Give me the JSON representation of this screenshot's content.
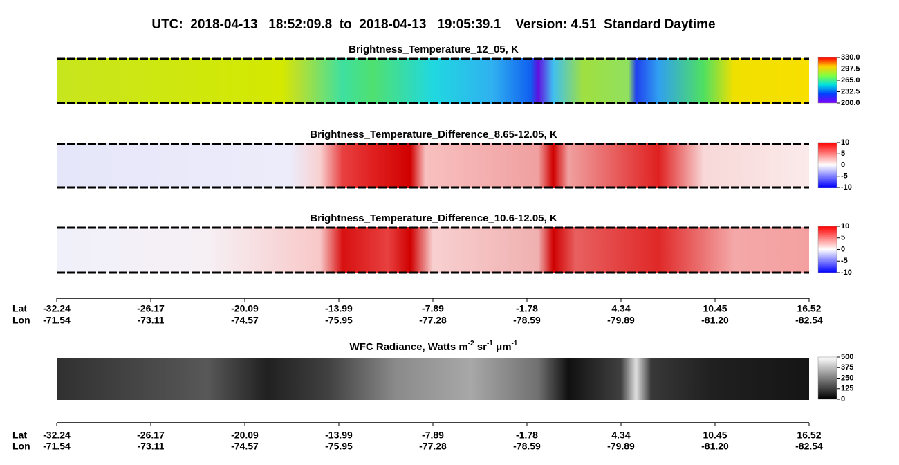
{
  "title": "UTC:  2018-04-13   18:52:09.8  to  2018-04-13   19:05:39.1    Version: 4.51  Standard Daytime",
  "panels": [
    {
      "title_segments": [
        {
          "text": "Brightness_Temperature_12_05, K"
        }
      ],
      "range": [
        200,
        330
      ],
      "colorbar_ticks": [
        {
          "value": 330,
          "label": "330.0"
        },
        {
          "value": 297.5,
          "label": "297.5"
        },
        {
          "value": 265,
          "label": "265.0"
        },
        {
          "value": 232.5,
          "label": "232.5"
        },
        {
          "value": 200,
          "label": "200.0"
        }
      ]
    },
    {
      "title_segments": [
        {
          "text": "Brightness_Temperature_Difference_8.65-12.05, K"
        }
      ],
      "range": [
        -10,
        10
      ],
      "colorbar_ticks": [
        10,
        5,
        0,
        -5,
        -10
      ]
    },
    {
      "title_segments": [
        {
          "text": "Brightness_Temperature_Difference_10.6-12.05, K"
        }
      ],
      "range": [
        -10,
        10
      ],
      "colorbar_ticks": [
        10,
        5,
        0,
        -5,
        -10
      ]
    },
    {
      "title_segments": [
        {
          "text": "WFC Radiance, Watts m"
        },
        {
          "text": "-2",
          "sup": true
        },
        {
          "text": " sr"
        },
        {
          "text": "-1",
          "sup": true
        },
        {
          "text": " μm"
        },
        {
          "text": "-1",
          "sup": true
        }
      ],
      "range": [
        0,
        500
      ],
      "colorbar_ticks": [
        500,
        375,
        250,
        125,
        0
      ]
    }
  ],
  "axes": [
    {
      "lat_label": "Lat",
      "lon_label": "Lon",
      "lat": [
        "-32.24",
        "-26.17",
        "-20.09",
        "-13.99",
        "-7.89",
        "-1.78",
        "4.34",
        "10.45",
        "16.52"
      ],
      "lon": [
        "-71.54",
        "-73.11",
        "-74.57",
        "-75.95",
        "-77.28",
        "-78.59",
        "-79.89",
        "-81.20",
        "-82.54"
      ]
    },
    {
      "lat_label": "Lat",
      "lon_label": "Lon",
      "lat": [
        "-32.24",
        "-26.17",
        "-20.09",
        "-13.99",
        "-7.89",
        "-1.78",
        "4.34",
        "10.45",
        "16.52"
      ],
      "lon": [
        "-71.54",
        "-73.11",
        "-74.57",
        "-75.95",
        "-77.28",
        "-78.59",
        "-79.89",
        "-81.20",
        "-82.54"
      ]
    }
  ]
}
